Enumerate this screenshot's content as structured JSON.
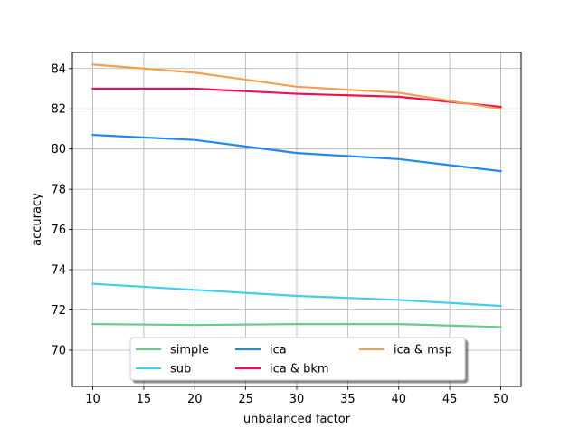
{
  "chart_data": {
    "type": "line",
    "xlabel": "unbalanced factor",
    "ylabel": "accuracy",
    "x": [
      10,
      20,
      30,
      40,
      50
    ],
    "xlim": [
      8,
      52
    ],
    "ylim": [
      68.2,
      84.8
    ],
    "xticks": [
      10,
      15,
      20,
      25,
      30,
      35,
      40,
      45,
      50
    ],
    "yticks": [
      70,
      72,
      74,
      76,
      78,
      80,
      82,
      84
    ],
    "grid": true,
    "legend": "lower center",
    "series": [
      {
        "name": "simple",
        "color": "#66cc88",
        "values": [
          71.3,
          71.25,
          71.3,
          71.3,
          71.15
        ]
      },
      {
        "name": "sub",
        "color": "#44ccf0",
        "values": [
          73.3,
          73.0,
          72.7,
          72.5,
          72.2
        ]
      },
      {
        "name": "ica",
        "color": "#2288ee",
        "values": [
          80.7,
          80.45,
          79.8,
          79.5,
          78.9
        ]
      },
      {
        "name": "ica & bkm",
        "color": "#ee1155",
        "values": [
          83.0,
          83.0,
          82.75,
          82.6,
          82.1
        ]
      },
      {
        "name": "ica & msp",
        "color": "#f5a050",
        "values": [
          84.2,
          83.8,
          83.1,
          82.8,
          82.0
        ]
      }
    ]
  }
}
